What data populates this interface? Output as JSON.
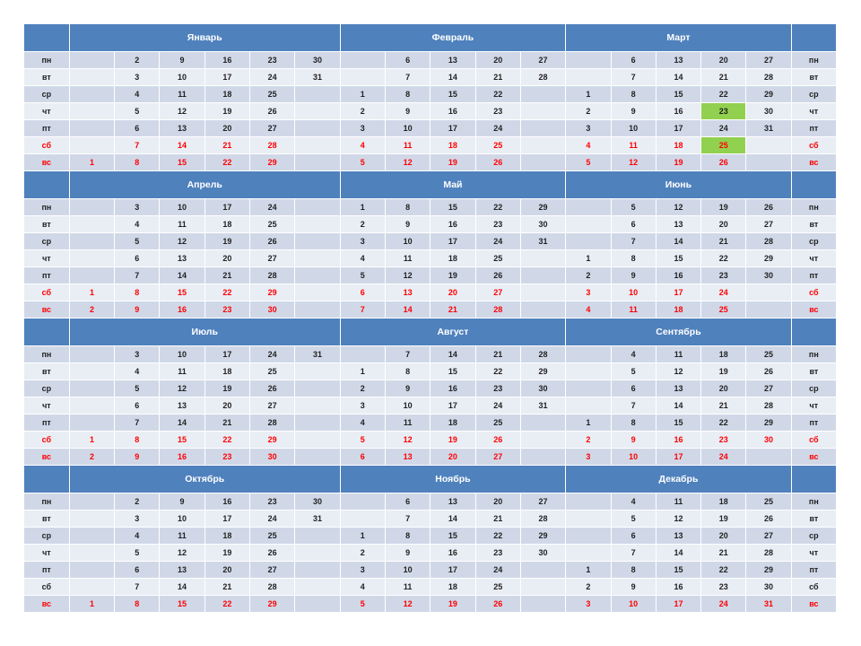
{
  "colors": {
    "header": "#4f81bd",
    "row_odd": "#d0d8e8",
    "row_even": "#e9edf4",
    "weekend": "#ff0000",
    "highlight": "#92d050"
  },
  "weekday_labels": [
    "пн",
    "вт",
    "ср",
    "чт",
    "пт",
    "сб",
    "вс"
  ],
  "quarters": [
    {
      "months": [
        {
          "name": "Январь",
          "days": [
            [
              "",
              "2",
              "9",
              "16",
              "23",
              "30"
            ],
            [
              "",
              "3",
              "10",
              "17",
              "24",
              "31"
            ],
            [
              "",
              "4",
              "11",
              "18",
              "25",
              ""
            ],
            [
              "",
              "5",
              "12",
              "19",
              "26",
              ""
            ],
            [
              "",
              "6",
              "13",
              "20",
              "27",
              ""
            ],
            [
              "",
              "7",
              "14",
              "21",
              "28",
              ""
            ],
            [
              "1",
              "8",
              "15",
              "22",
              "29",
              ""
            ]
          ]
        },
        {
          "name": "Февраль",
          "days": [
            [
              "",
              "6",
              "13",
              "20",
              "27"
            ],
            [
              "",
              "7",
              "14",
              "21",
              "28"
            ],
            [
              "1",
              "8",
              "15",
              "22",
              ""
            ],
            [
              "2",
              "9",
              "16",
              "23",
              ""
            ],
            [
              "3",
              "10",
              "17",
              "24",
              ""
            ],
            [
              "4",
              "11",
              "18",
              "25",
              ""
            ],
            [
              "5",
              "12",
              "19",
              "26",
              ""
            ]
          ]
        },
        {
          "name": "Март",
          "days": [
            [
              "",
              "6",
              "13",
              "20",
              "27"
            ],
            [
              "",
              "7",
              "14",
              "21",
              "28"
            ],
            [
              "1",
              "8",
              "15",
              "22",
              "29"
            ],
            [
              "2",
              "9",
              "16",
              "23",
              "30"
            ],
            [
              "3",
              "10",
              "17",
              "24",
              "31"
            ],
            [
              "4",
              "11",
              "18",
              "25",
              ""
            ],
            [
              "5",
              "12",
              "19",
              "26",
              ""
            ]
          ]
        }
      ]
    },
    {
      "months": [
        {
          "name": "Апрель",
          "days": [
            [
              "",
              "3",
              "10",
              "17",
              "24",
              ""
            ],
            [
              "",
              "4",
              "11",
              "18",
              "25",
              ""
            ],
            [
              "",
              "5",
              "12",
              "19",
              "26",
              ""
            ],
            [
              "",
              "6",
              "13",
              "20",
              "27",
              ""
            ],
            [
              "",
              "7",
              "14",
              "21",
              "28",
              ""
            ],
            [
              "1",
              "8",
              "15",
              "22",
              "29",
              ""
            ],
            [
              "2",
              "9",
              "16",
              "23",
              "30",
              ""
            ]
          ]
        },
        {
          "name": "Май",
          "days": [
            [
              "1",
              "8",
              "15",
              "22",
              "29"
            ],
            [
              "2",
              "9",
              "16",
              "23",
              "30"
            ],
            [
              "3",
              "10",
              "17",
              "24",
              "31"
            ],
            [
              "4",
              "11",
              "18",
              "25",
              ""
            ],
            [
              "5",
              "12",
              "19",
              "26",
              ""
            ],
            [
              "6",
              "13",
              "20",
              "27",
              ""
            ],
            [
              "7",
              "14",
              "21",
              "28",
              ""
            ]
          ]
        },
        {
          "name": "Июнь",
          "days": [
            [
              "",
              "5",
              "12",
              "19",
              "26"
            ],
            [
              "",
              "6",
              "13",
              "20",
              "27"
            ],
            [
              "",
              "7",
              "14",
              "21",
              "28"
            ],
            [
              "1",
              "8",
              "15",
              "22",
              "29"
            ],
            [
              "2",
              "9",
              "16",
              "23",
              "30"
            ],
            [
              "3",
              "10",
              "17",
              "24",
              ""
            ],
            [
              "4",
              "11",
              "18",
              "25",
              ""
            ]
          ]
        }
      ]
    },
    {
      "months": [
        {
          "name": "Июль",
          "days": [
            [
              "",
              "3",
              "10",
              "17",
              "24",
              "31"
            ],
            [
              "",
              "4",
              "11",
              "18",
              "25",
              ""
            ],
            [
              "",
              "5",
              "12",
              "19",
              "26",
              ""
            ],
            [
              "",
              "6",
              "13",
              "20",
              "27",
              ""
            ],
            [
              "",
              "7",
              "14",
              "21",
              "28",
              ""
            ],
            [
              "1",
              "8",
              "15",
              "22",
              "29",
              ""
            ],
            [
              "2",
              "9",
              "16",
              "23",
              "30",
              ""
            ]
          ]
        },
        {
          "name": "Август",
          "days": [
            [
              "",
              "7",
              "14",
              "21",
              "28"
            ],
            [
              "1",
              "8",
              "15",
              "22",
              "29"
            ],
            [
              "2",
              "9",
              "16",
              "23",
              "30"
            ],
            [
              "3",
              "10",
              "17",
              "24",
              "31"
            ],
            [
              "4",
              "11",
              "18",
              "25",
              ""
            ],
            [
              "5",
              "12",
              "19",
              "26",
              ""
            ],
            [
              "6",
              "13",
              "20",
              "27",
              ""
            ]
          ]
        },
        {
          "name": "Сентябрь",
          "days": [
            [
              "",
              "4",
              "11",
              "18",
              "25"
            ],
            [
              "",
              "5",
              "12",
              "19",
              "26"
            ],
            [
              "",
              "6",
              "13",
              "20",
              "27"
            ],
            [
              "",
              "7",
              "14",
              "21",
              "28"
            ],
            [
              "1",
              "8",
              "15",
              "22",
              "29"
            ],
            [
              "2",
              "9",
              "16",
              "23",
              "30"
            ],
            [
              "3",
              "10",
              "17",
              "24",
              ""
            ]
          ]
        }
      ]
    },
    {
      "months": [
        {
          "name": "Октябрь",
          "days": [
            [
              "",
              "2",
              "9",
              "16",
              "23",
              "30"
            ],
            [
              "",
              "3",
              "10",
              "17",
              "24",
              "31"
            ],
            [
              "",
              "4",
              "11",
              "18",
              "25",
              ""
            ],
            [
              "",
              "5",
              "12",
              "19",
              "26",
              ""
            ],
            [
              "",
              "6",
              "13",
              "20",
              "27",
              ""
            ],
            [
              "",
              "7",
              "14",
              "21",
              "28",
              ""
            ],
            [
              "1",
              "8",
              "15",
              "22",
              "29",
              ""
            ]
          ]
        },
        {
          "name": "Ноябрь",
          "days": [
            [
              "",
              "6",
              "13",
              "20",
              "27"
            ],
            [
              "",
              "7",
              "14",
              "21",
              "28"
            ],
            [
              "1",
              "8",
              "15",
              "22",
              "29"
            ],
            [
              "2",
              "9",
              "16",
              "23",
              "30"
            ],
            [
              "3",
              "10",
              "17",
              "24",
              ""
            ],
            [
              "4",
              "11",
              "18",
              "25",
              ""
            ],
            [
              "5",
              "12",
              "19",
              "26",
              ""
            ]
          ]
        },
        {
          "name": "Декабрь",
          "days": [
            [
              "",
              "4",
              "11",
              "18",
              "25"
            ],
            [
              "",
              "5",
              "12",
              "19",
              "26"
            ],
            [
              "",
              "6",
              "13",
              "20",
              "27"
            ],
            [
              "",
              "7",
              "14",
              "21",
              "28"
            ],
            [
              "1",
              "8",
              "15",
              "22",
              "29"
            ],
            [
              "2",
              "9",
              "16",
              "23",
              "30"
            ],
            [
              "3",
              "10",
              "17",
              "24",
              "31"
            ]
          ]
        }
      ]
    }
  ],
  "red_rows": [
    [
      false,
      false,
      false,
      false,
      false,
      true,
      true
    ],
    [
      false,
      false,
      false,
      false,
      false,
      true,
      true
    ],
    [
      false,
      false,
      false,
      false,
      false,
      true,
      true
    ],
    [
      false,
      false,
      false,
      false,
      false,
      false,
      true
    ]
  ],
  "highlighted_days": [
    {
      "quarter": 0,
      "month": 2,
      "row": 3,
      "col": 3
    },
    {
      "quarter": 0,
      "month": 2,
      "row": 5,
      "col": 3
    }
  ]
}
